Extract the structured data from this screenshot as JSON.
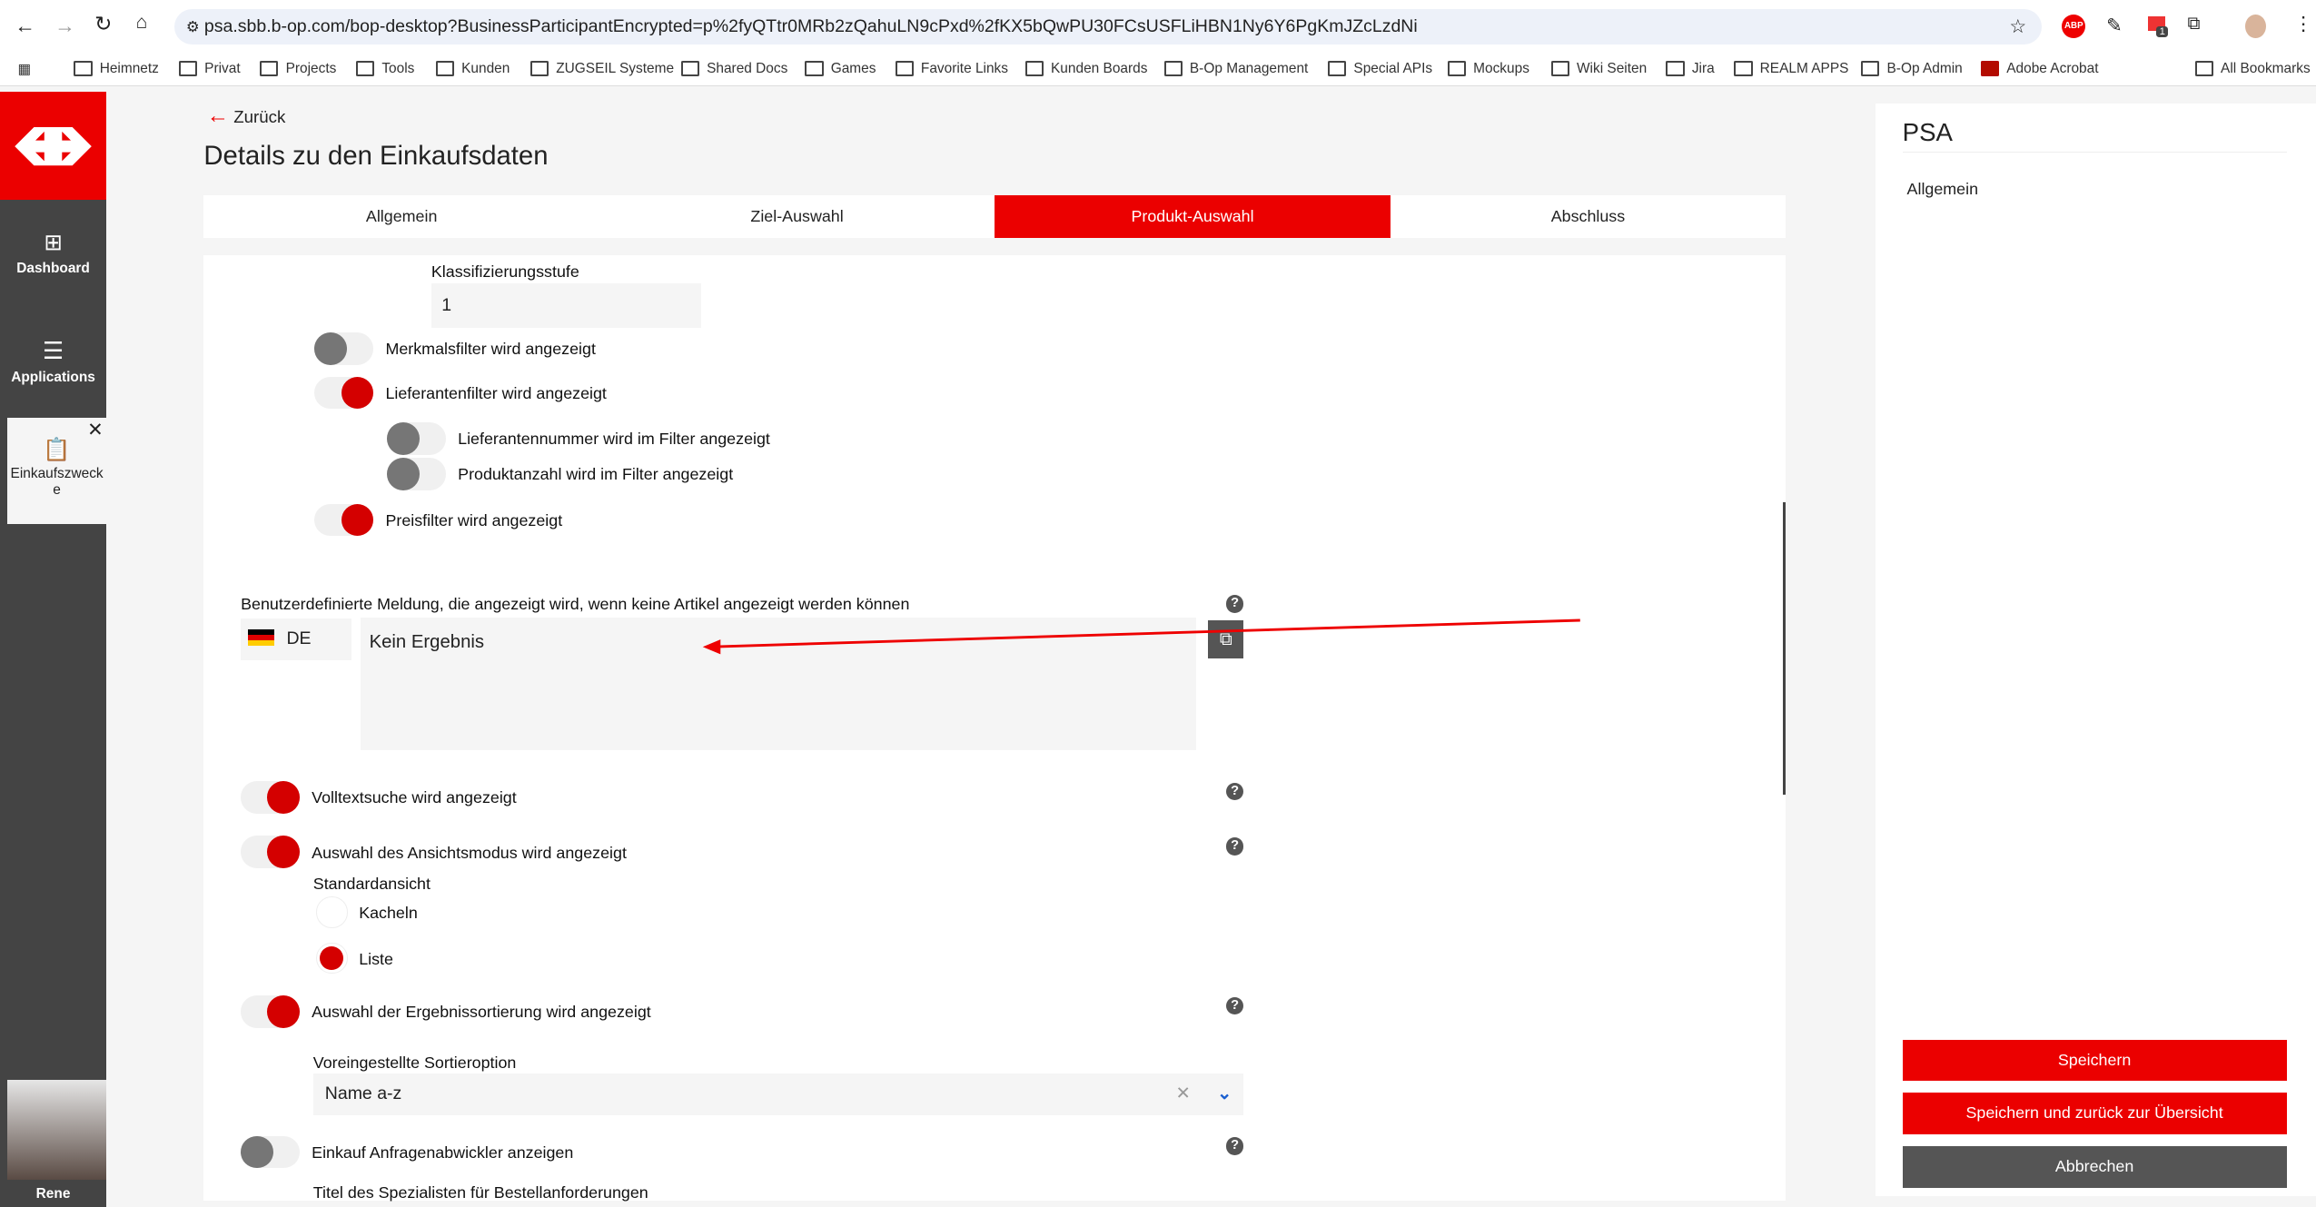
{
  "browser": {
    "url": "psa.sbb.b-op.com/bop-desktop?BusinessParticipantEncrypted=p%2fyQTtr0MRb2zQahuLN9cPxd%2fKX5bQwPU30FCsUSFLiHBN1Ny6Y6PgKmJZcLzdNi",
    "extension_badge": "1",
    "bookmarks": [
      "Heimnetz",
      "Privat",
      "Projects",
      "Tools",
      "Kunden",
      "ZUGSEIL Systeme",
      "Shared Docs",
      "Games",
      "Favorite Links",
      "Kunden Boards",
      "B-Op Management",
      "Special APIs",
      "Mockups",
      "Wiki Seiten",
      "Jira",
      "REALM APPS",
      "B-Op Admin",
      "Adobe Acrobat"
    ],
    "all_bookmarks": "All Bookmarks"
  },
  "sidebar": {
    "dashboard": "Dashboard",
    "applications": "Applications",
    "open_tab": "Einkaufszwecke",
    "user": "Rene"
  },
  "header": {
    "back": "Zurück",
    "title": "Details zu den Einkaufsdaten"
  },
  "tabs": [
    "Allgemein",
    "Ziel-Auswahl",
    "Produkt-Auswahl",
    "Abschluss"
  ],
  "active_tab": "Produkt-Auswahl",
  "form": {
    "klass_label": "Klassifizierungsstufe",
    "klass_value": "1",
    "merkmal": "Merkmalsfilter wird angezeigt",
    "lieferant": "Lieferantenfilter wird angezeigt",
    "lieferantennr": "Lieferantennummer wird im Filter angezeigt",
    "produktanzahl": "Produktanzahl wird im Filter angezeigt",
    "preis": "Preisfilter wird angezeigt",
    "msg_label": "Benutzerdefinierte Meldung, die angezeigt wird, wenn keine Artikel angezeigt werden können",
    "lang": "DE",
    "msg_value": "Kein Ergebnis",
    "volltext": "Volltextsuche wird angezeigt",
    "ansicht": "Auswahl des Ansichtsmodus wird angezeigt",
    "standard": "Standardansicht",
    "kacheln": "Kacheln",
    "liste": "Liste",
    "sortierung": "Auswahl der Ergebnissortierung wird angezeigt",
    "sort_label": "Voreingestellte Sortieroption",
    "sort_value": "Name a-z",
    "anfragen": "Einkauf Anfragenabwickler anzeigen",
    "titel": "Titel des Spezialisten für Bestellanforderungen"
  },
  "right": {
    "title": "PSA",
    "section": "Allgemein",
    "save": "Speichern",
    "save_back": "Speichern und zurück zur Übersicht",
    "cancel": "Abbrechen"
  },
  "colors": {
    "accent": "#eb0000",
    "sidebar": "#444444",
    "cancel": "#555555"
  }
}
